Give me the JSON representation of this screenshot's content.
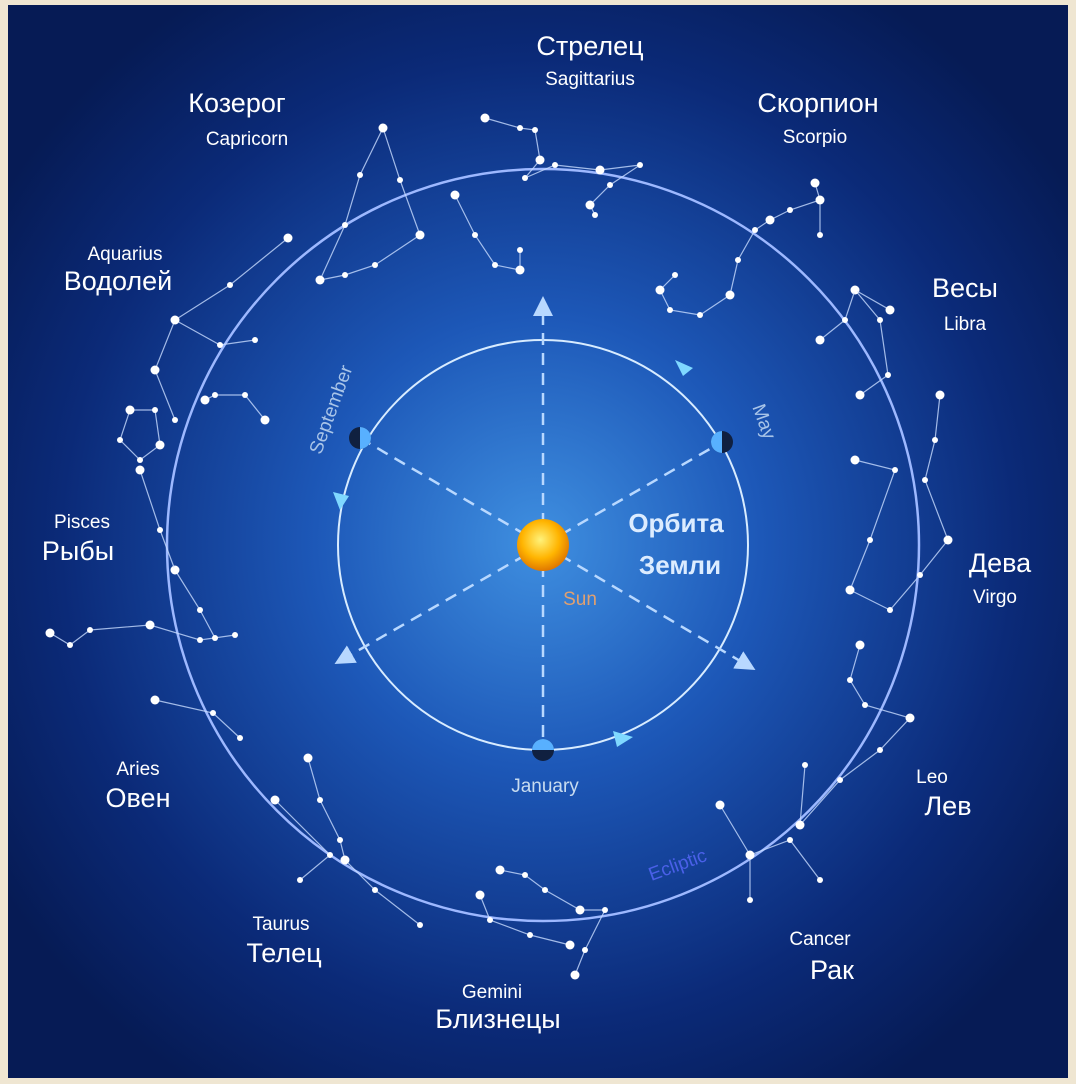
{
  "constellations": [
    {
      "ru": "Стрелец",
      "en": "Sagittarius"
    },
    {
      "ru": "Козерог",
      "en": "Capricorn"
    },
    {
      "ru": "Скорпион",
      "en": "Scorpio"
    },
    {
      "en": "Aquarius",
      "ru": "Водолей"
    },
    {
      "ru": "Весы",
      "en": "Libra"
    },
    {
      "en": "Pisces",
      "ru": "Рыбы"
    },
    {
      "ru": "Дева",
      "en": "Virgo"
    },
    {
      "en": "Aries",
      "ru": "Овен"
    },
    {
      "en": "Leo",
      "ru": "Лев"
    },
    {
      "en": "Taurus",
      "ru": "Телец"
    },
    {
      "en": "Cancer",
      "ru": "Рак"
    },
    {
      "en": "Gemini",
      "ru": "Близнецы"
    }
  ],
  "orbit": {
    "title_line1": "Орбита",
    "title_line2": "Земли",
    "sun": "Sun",
    "september": "September",
    "may": "May",
    "january": "January",
    "ecliptic": "Ecliptic"
  }
}
